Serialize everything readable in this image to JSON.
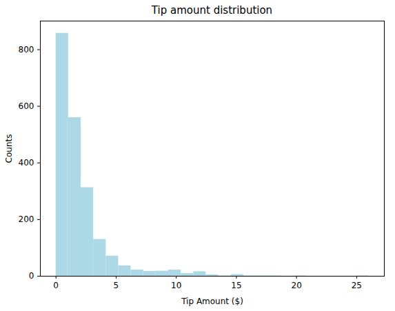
{
  "chart_data": {
    "type": "histogram",
    "title": "Tip amount distribution",
    "x_label": "Tip Amount ($)",
    "y_label": "Counts",
    "bins": [
      0,
      1.04,
      2.08,
      3.12,
      4.16,
      5.2,
      6.24,
      7.28,
      8.32,
      9.36,
      10.4,
      11.44,
      12.48,
      13.52,
      14.56,
      15.6,
      16.64,
      17.68,
      18.72,
      19.76,
      20.8,
      21.84,
      22.88,
      23.92,
      24.96,
      26
    ],
    "values": [
      858,
      560,
      313,
      130,
      71,
      37,
      22,
      17,
      18,
      22,
      10,
      16,
      5,
      1,
      6,
      1,
      1,
      1,
      0,
      1,
      0,
      0,
      0,
      0,
      1
    ],
    "color": "#add8e6",
    "xlim": [
      -1.3,
      27.3
    ],
    "xticks": [
      0,
      5,
      10,
      15,
      20,
      25
    ],
    "ylim": [
      0,
      901
    ],
    "yticks": [
      0,
      200,
      400,
      600,
      800
    ],
    "grid": false
  }
}
